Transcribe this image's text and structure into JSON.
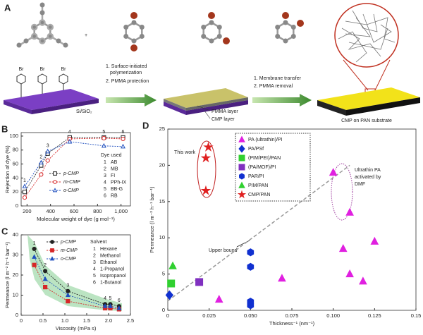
{
  "panel_a": {
    "label": "A",
    "plus": "+",
    "br_labels": [
      "Br",
      "Br",
      "Br"
    ],
    "substrate": "Si/SiO₂",
    "step1": [
      "1. Surface-initiated",
      "polymerization",
      "2. PMMA protection"
    ],
    "layers": [
      "PMMA layer",
      "CMP layer"
    ],
    "step2": [
      "1. Membrane transfer",
      "2. PMMA removal"
    ],
    "result": "CMP on PAN substrate"
  },
  "chart_data": [
    {
      "type": "line",
      "panel_label": "B",
      "x_label": "Molecular weight of dye (g mol⁻¹)",
      "y_label": "Rejection of dye (%)",
      "x": [
        180,
        320,
        376,
        563,
        854,
        1017
      ],
      "point_labels": [
        "1",
        "2",
        "3",
        "4",
        "5",
        "6"
      ],
      "legend_title": "Dye used",
      "item_names": [
        "AB",
        "MB",
        "FI",
        "PPh-IX",
        "BB-G",
        "RB"
      ],
      "markers_filled": false,
      "series": [
        {
          "name": "p-CMP",
          "color": "#222222",
          "marker": "square",
          "values": [
            20,
            58,
            75,
            98,
            98,
            98
          ]
        },
        {
          "name": "m-CMP",
          "color": "#d62728",
          "marker": "circle",
          "values": [
            12,
            45,
            65,
            96,
            97,
            96
          ]
        },
        {
          "name": "o-CMP",
          "color": "#1f4fbf",
          "marker": "triangle",
          "values": [
            28,
            62,
            78,
            92,
            86,
            85
          ]
        }
      ],
      "xlim": [
        150,
        1080
      ],
      "ylim": [
        0,
        105
      ],
      "xticks": [
        200,
        400,
        600,
        800,
        {
          "value": 1000,
          "label": "1,000"
        }
      ],
      "yticks": [
        0,
        20,
        40,
        60,
        80,
        100
      ]
    },
    {
      "type": "line",
      "panel_label": "C",
      "x_label": "Viscosity (mPa s)",
      "y_label": "Permeance (l m⁻² h⁻¹ bar⁻¹)",
      "x": [
        0.3,
        0.55,
        1.07,
        1.92,
        2.04,
        2.24
      ],
      "point_labels": [
        "1",
        "2",
        "3",
        "4",
        "5",
        "6"
      ],
      "legend_title": "Solvent",
      "item_names": [
        "Hexane",
        "Methanol",
        "Ethanol",
        "1-Propanol",
        "Isopropanol",
        "1-Butanol"
      ],
      "markers_filled": true,
      "series": [
        {
          "name": "p-CMP",
          "color": "#222222",
          "marker": "circle",
          "values": [
            33,
            22,
            12,
            5.5,
            5.5,
            4.5
          ]
        },
        {
          "name": "m-CMP",
          "color": "#d62728",
          "marker": "square",
          "values": [
            25,
            14,
            7,
            3.5,
            3.5,
            3
          ]
        },
        {
          "name": "o-CMP",
          "color": "#1f4fbf",
          "marker": "triangle",
          "values": [
            29,
            18,
            10,
            4.5,
            4.5,
            3.5
          ]
        }
      ],
      "xlim": [
        0,
        2.5
      ],
      "ylim": [
        0,
        40
      ],
      "xticks": [
        0,
        0.5,
        {
          "value": 1,
          "label": "1.0"
        },
        1.5,
        {
          "value": 2,
          "label": "2.0"
        },
        2.5
      ],
      "yticks": [
        0,
        10,
        20,
        30,
        40
      ]
    },
    {
      "type": "scatter",
      "panel_label": "D",
      "x_label": "Thickness⁻¹ (nm⁻¹)",
      "y_label": "Permeance (l m⁻² h⁻¹ bar⁻¹)",
      "markers_filled": true,
      "series": [
        {
          "name": "PA (ultrathin)/PI",
          "color": "#e020e0",
          "marker": "triangle",
          "x": [
            0.1,
            0.11,
            0.031,
            0.069,
            0.106,
            0.11,
            0.118,
            0.125
          ],
          "values": [
            19,
            13.5,
            1.5,
            4.4,
            8.5,
            5,
            4,
            9.5
          ]
        },
        {
          "name": "PA/PSf",
          "color": "#1030d0",
          "marker": "diamond",
          "x": [
            0.001
          ],
          "values": [
            2.1
          ]
        },
        {
          "name": "(PIM/PEI)/PAN",
          "color": "#30d030",
          "marker": "square",
          "x": [
            0.002
          ],
          "values": [
            3.7
          ]
        },
        {
          "name": "(PA/MOF)/PI",
          "color": "#8030c0",
          "marker": "square",
          "x": [
            0.019
          ],
          "values": [
            3.9
          ]
        },
        {
          "name": "PAR/PI",
          "color": "#1030d0",
          "marker": "hexagon",
          "x": [
            0.05,
            0.05,
            0.05,
            0.05
          ],
          "values": [
            8,
            6,
            1.2,
            0.7
          ]
        },
        {
          "name": "PIM/PAN",
          "color": "#30d030",
          "marker": "triangle",
          "x": [
            0.003
          ],
          "values": [
            6.1
          ]
        },
        {
          "name": "CMP/PAN",
          "color": "#e02020",
          "marker": "star",
          "x": [
            0.0245,
            0.023,
            0.023
          ],
          "values": [
            22.5,
            21,
            16.5
          ]
        }
      ],
      "trend": {
        "label": "Upper bound",
        "x": [
          0,
          0.11
        ],
        "values": [
          1.3,
          20
        ]
      },
      "annotation_this_work": "This work",
      "annotation_pa": [
        "Ultrathin PA",
        "activated by",
        "DMF"
      ],
      "xlim": [
        0,
        0.15
      ],
      "ylim": [
        0,
        25
      ],
      "xticks": [
        0,
        0.025,
        {
          "value": 0.05,
          "label": "0.050"
        },
        0.075,
        {
          "value": 0.1,
          "label": "0.100"
        },
        0.125,
        0.15
      ],
      "yticks": [
        0,
        5,
        10,
        15,
        20,
        25
      ]
    }
  ]
}
